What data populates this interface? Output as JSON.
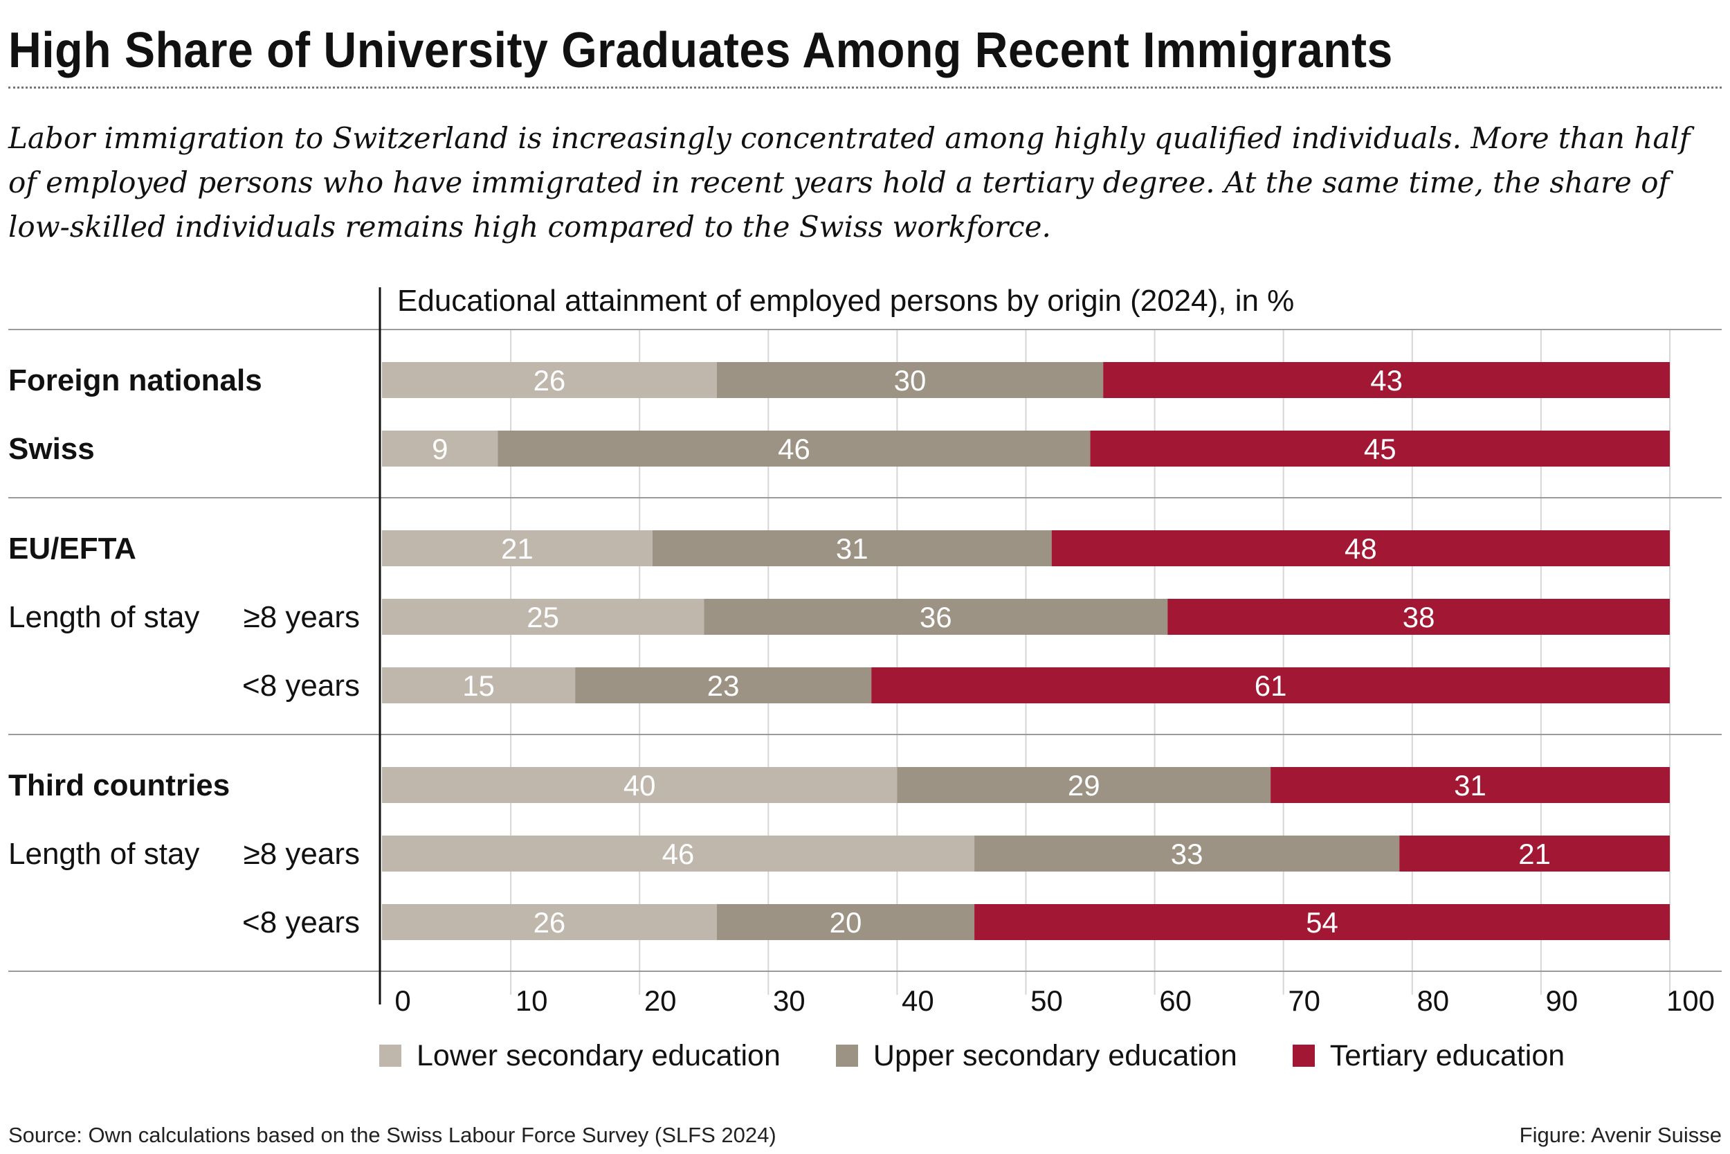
{
  "title": "High Share of University Graduates Among Recent Immigrants",
  "subtitle": "Labor immigration to Switzerland is increasingly concentrated among highly qualified individuals. More than half of employed persons who have immigrated in recent years hold a tertiary degree. At the same time, the share of low-skilled individuals remains high compared to the Swiss workforce.",
  "source": "Source: Own calculations based on the Swiss Labour Force Survey (SLFS 2024)",
  "credit": "Figure: Avenir Suisse",
  "legend": [
    {
      "label": "Lower secondary education",
      "color": "#bfb7ac"
    },
    {
      "label": "Upper secondary education",
      "color": "#9d9385"
    },
    {
      "label": "Tertiary education",
      "color": "#a21834"
    }
  ],
  "chart_data": {
    "type": "bar",
    "orientation": "horizontal",
    "stacked": true,
    "title": "Educational attainment of employed persons by origin (2024), in %",
    "xlim": [
      0,
      100
    ],
    "x_ticks": [
      "0",
      "10",
      "20",
      "30",
      "40",
      "50",
      "60",
      "70",
      "80",
      "90",
      "100"
    ],
    "groups": [
      {
        "rows": [
          {
            "label": "Foreign nationals",
            "sublabel": "",
            "bold": true,
            "values": [
              26,
              30,
              43
            ]
          },
          {
            "label": "Swiss",
            "sublabel": "",
            "bold": true,
            "values": [
              9,
              46,
              45
            ]
          }
        ]
      },
      {
        "rows": [
          {
            "label": "EU/EFTA",
            "sublabel": "",
            "bold": true,
            "values": [
              21,
              31,
              48
            ]
          },
          {
            "label": "Length of stay",
            "sublabel": "≥8 years",
            "bold": false,
            "values": [
              25,
              36,
              38
            ]
          },
          {
            "label": "",
            "sublabel": "<8 years",
            "bold": false,
            "values": [
              15,
              23,
              61
            ]
          }
        ]
      },
      {
        "rows": [
          {
            "label": "Third countries",
            "sublabel": "",
            "bold": true,
            "values": [
              40,
              29,
              31
            ]
          },
          {
            "label": "Length of stay",
            "sublabel": "≥8 years",
            "bold": false,
            "values": [
              46,
              33,
              21
            ]
          },
          {
            "label": "",
            "sublabel": "<8 years",
            "bold": false,
            "values": [
              26,
              20,
              54
            ]
          }
        ]
      }
    ],
    "series": [
      {
        "name": "Lower secondary education",
        "color": "#bfb7ac"
      },
      {
        "name": "Upper secondary education",
        "color": "#9d9385"
      },
      {
        "name": "Tertiary education",
        "color": "#a21834"
      }
    ],
    "grid": true,
    "legend_position": "bottom"
  }
}
